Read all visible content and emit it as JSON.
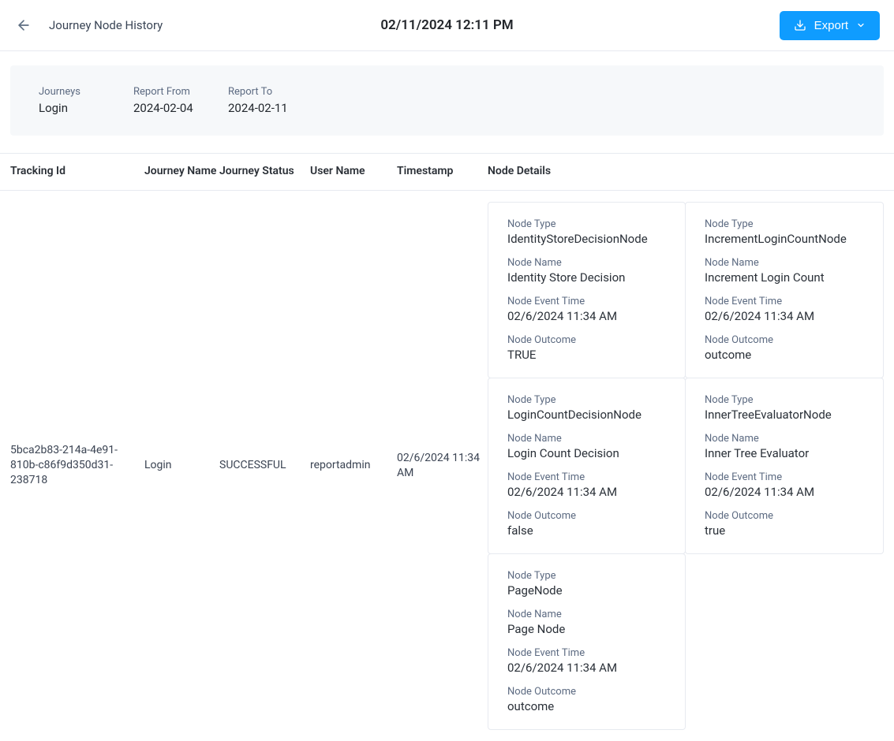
{
  "header": {
    "pageTitle": "Journey Node History",
    "reportTimestamp": "02/11/2024 12:11 PM",
    "exportLabel": "Export"
  },
  "summary": {
    "labels": {
      "journeys": "Journeys",
      "reportFrom": "Report From",
      "reportTo": "Report To"
    },
    "values": {
      "journeys": "Login",
      "reportFrom": "2024-02-04",
      "reportTo": "2024-02-11"
    }
  },
  "columns": {
    "trackingId": "Tracking Id",
    "journeyName": "Journey Name",
    "journeyStatus": "Journey Status",
    "userName": "User Name",
    "timestamp": "Timestamp",
    "nodeDetails": "Node Details"
  },
  "nodeLabels": {
    "nodeType": "Node Type",
    "nodeName": "Node Name",
    "nodeEventTime": "Node Event Time",
    "nodeOutcome": "Node Outcome"
  },
  "row": {
    "trackingId": "5bca2b83-214a-4e91-810b-c86f9d350d31-238718",
    "journeyName": "Login",
    "journeyStatus": "SUCCESSFUL",
    "userName": "reportadmin",
    "timestamp": "02/6/2024 11:34 AM",
    "nodes": [
      {
        "type": "IdentityStoreDecisionNode",
        "name": "Identity Store Decision",
        "time": "02/6/2024 11:34 AM",
        "outcome": "TRUE"
      },
      {
        "type": "IncrementLoginCountNode",
        "name": "Increment Login Count",
        "time": "02/6/2024 11:34 AM",
        "outcome": "outcome"
      },
      {
        "type": "LoginCountDecisionNode",
        "name": "Login Count Decision",
        "time": "02/6/2024 11:34 AM",
        "outcome": "false"
      },
      {
        "type": "InnerTreeEvaluatorNode",
        "name": "Inner Tree Evaluator",
        "time": "02/6/2024 11:34 AM",
        "outcome": "true"
      },
      {
        "type": "PageNode",
        "name": "Page Node",
        "time": "02/6/2024 11:34 AM",
        "outcome": "outcome"
      }
    ]
  },
  "colors": {
    "primary": "#0f9cff",
    "panelBg": "#f6f8fa",
    "border": "#e7eaf0",
    "textMuted": "#5d6b82",
    "text": "#2a3038"
  }
}
